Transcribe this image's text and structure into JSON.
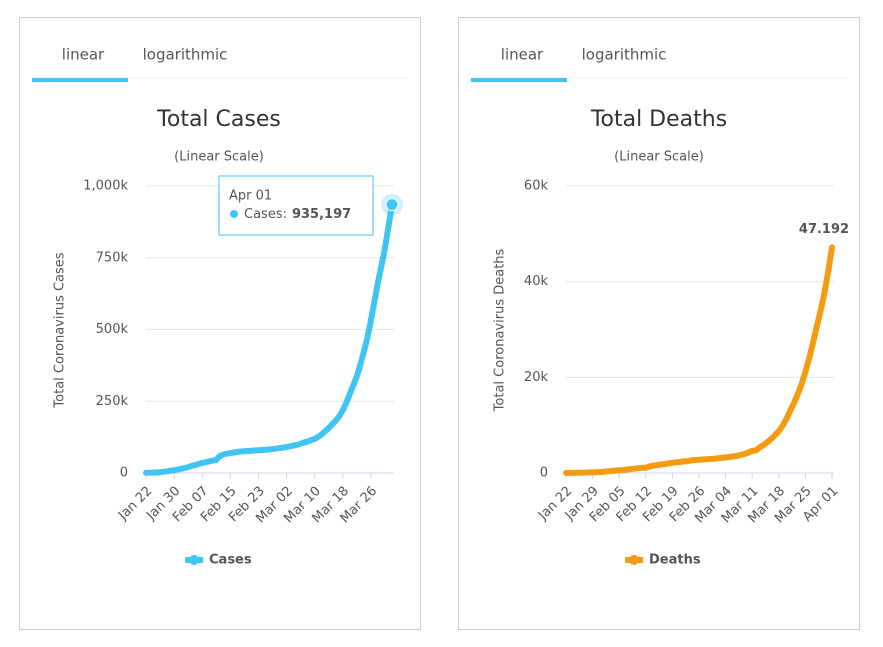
{
  "chart_data": [
    {
      "type": "line",
      "tabs": [
        "linear",
        "logarithmic"
      ],
      "title": "Total Cases",
      "subtitle": "(Linear Scale)",
      "y_label": "Total Coronavirus Cases",
      "categories": [
        "Jan 22",
        null,
        null,
        null,
        null,
        null,
        null,
        null,
        "Jan 30",
        null,
        null,
        null,
        null,
        null,
        null,
        null,
        "Feb 07",
        null,
        null,
        null,
        null,
        null,
        null,
        null,
        "Feb 15",
        null,
        null,
        null,
        null,
        null,
        null,
        null,
        "Feb 23",
        null,
        null,
        null,
        null,
        null,
        null,
        null,
        "Mar 02",
        null,
        null,
        null,
        null,
        null,
        null,
        null,
        "Mar 10",
        null,
        null,
        null,
        null,
        null,
        null,
        null,
        "Mar 18",
        null,
        null,
        null,
        null,
        null,
        null,
        null,
        "Mar 26",
        null,
        null,
        null,
        null,
        null,
        null
      ],
      "series": [
        {
          "name": "Cases",
          "color": "#40c4f2",
          "values": [
            580,
            845,
            1317,
            2015,
            2800,
            4581,
            6058,
            7813,
            9823,
            11950,
            14553,
            17391,
            20630,
            24545,
            28266,
            31439,
            34876,
            37552,
            40553,
            43099,
            45134,
            59287,
            64438,
            67100,
            69197,
            71329,
            73332,
            75184,
            75700,
            76677,
            77673,
            78651,
            79205,
            80087,
            80828,
            81820,
            83112,
            84615,
            86604,
            88585,
            90443,
            93016,
            95314,
            98425,
            102050,
            106099,
            109991,
            114381,
            118948,
            126214,
            134576,
            145483,
            156653,
            169593,
            182490,
            198238,
            218822,
            244933,
            275597,
            305036,
            337489,
            378830,
            422574,
            471035,
            531865,
            596366,
            663127,
            723390,
            784794,
            859032,
            935197
          ]
        }
      ],
      "ylim": [
        0,
        1000000
      ],
      "yticks": [
        0,
        {
          "value": 250000,
          "label": "250k"
        },
        {
          "value": 500000,
          "label": "500k"
        },
        {
          "value": 750000,
          "label": "750k"
        },
        {
          "value": 1000000,
          "label": "1,000k"
        }
      ],
      "grid": true,
      "tooltip": {
        "x": "Apr 01",
        "name": "Cases:",
        "value_label": "935,197"
      }
    },
    {
      "type": "line",
      "tabs": [
        "linear",
        "logarithmic"
      ],
      "title": "Total Deaths",
      "subtitle": "(Linear Scale)",
      "y_label": "Total Coronavirus Deaths",
      "categories": [
        "Jan 22",
        null,
        null,
        null,
        null,
        null,
        null,
        "Jan 29",
        null,
        null,
        null,
        null,
        null,
        null,
        "Feb 05",
        null,
        null,
        null,
        null,
        null,
        null,
        "Feb 12",
        null,
        null,
        null,
        null,
        null,
        null,
        "Feb 19",
        null,
        null,
        null,
        null,
        null,
        null,
        "Feb 26",
        null,
        null,
        null,
        null,
        null,
        null,
        "Mar 04",
        null,
        null,
        null,
        null,
        null,
        null,
        "Mar 11",
        null,
        null,
        null,
        null,
        null,
        null,
        "Mar 18",
        null,
        null,
        null,
        null,
        null,
        null,
        "Mar 25",
        null,
        null,
        null,
        null,
        null,
        null,
        "Apr 01"
      ],
      "series": [
        {
          "name": "Deaths",
          "color": "#f39c12",
          "values": [
            17,
            18,
            26,
            42,
            56,
            82,
            131,
            133,
            171,
            213,
            259,
            362,
            426,
            492,
            564,
            634,
            719,
            806,
            906,
            1013,
            1113,
            1118,
            1371,
            1523,
            1666,
            1770,
            1868,
            2007,
            2122,
            2247,
            2251,
            2458,
            2469,
            2629,
            2708,
            2770,
            2814,
            2872,
            2941,
            2996,
            3085,
            3160,
            3254,
            3348,
            3460,
            3558,
            3802,
            3988,
            4262,
            4615,
            4720,
            5404,
            5819,
            6440,
            7126,
            7905,
            8733,
            9867,
            11299,
            13017,
            14623,
            16497,
            18615,
            21181,
            23970,
            27198,
            30652,
            33925,
            37582,
            42107,
            47192
          ]
        }
      ],
      "ylim": [
        0,
        60000
      ],
      "yticks": [
        0,
        {
          "value": 20000,
          "label": "20k"
        },
        {
          "value": 40000,
          "label": "40k"
        },
        {
          "value": 60000,
          "label": "60k"
        }
      ],
      "grid": true,
      "end_label": {
        "value": 47192,
        "value_label": "47.192",
        "color": "#e8000b"
      }
    }
  ]
}
